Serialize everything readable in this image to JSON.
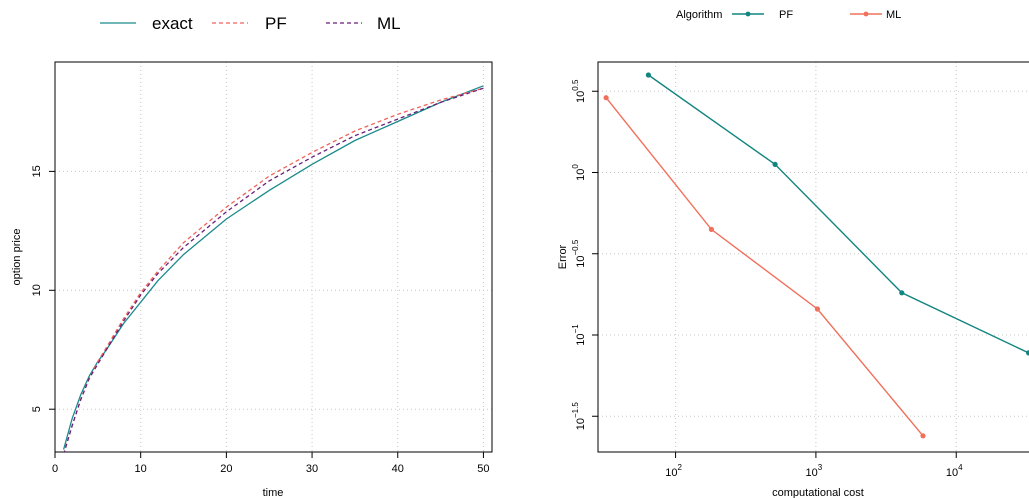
{
  "colors": {
    "exact": "#1b8a8a",
    "pf_left": "#f0625a",
    "ml_left": "#6a1f7a",
    "pf_right": "#11857f",
    "ml_right": "#f0705a"
  },
  "chart_data": [
    {
      "type": "line",
      "title": "",
      "xlabel": "time",
      "ylabel": "option price",
      "xlim": [
        0,
        51
      ],
      "ylim": [
        3.2,
        19.6
      ],
      "xticks": [
        0,
        10,
        20,
        30,
        40,
        50
      ],
      "yticks": [
        5,
        10,
        15
      ],
      "grid": true,
      "legend": "top",
      "series": [
        {
          "name": "exact",
          "style": "solid",
          "x": [
            1,
            2,
            3,
            4,
            5,
            6,
            8,
            10,
            12,
            15,
            18,
            20,
            25,
            30,
            35,
            40,
            45,
            50
          ],
          "y": [
            3.3,
            4.6,
            5.6,
            6.4,
            7.0,
            7.5,
            8.6,
            9.5,
            10.4,
            11.5,
            12.4,
            13.0,
            14.2,
            15.3,
            16.3,
            17.1,
            17.9,
            18.6
          ]
        },
        {
          "name": "PF",
          "style": "dashed",
          "x": [
            1,
            2,
            3,
            4,
            5,
            6,
            8,
            10,
            12,
            15,
            18,
            20,
            25,
            30,
            35,
            40,
            45,
            50
          ],
          "y": [
            3.1,
            4.3,
            5.4,
            6.3,
            7.0,
            7.6,
            8.8,
            9.9,
            10.8,
            12.0,
            12.9,
            13.5,
            14.8,
            15.8,
            16.7,
            17.4,
            18.0,
            18.5
          ]
        },
        {
          "name": "ML",
          "style": "dashed",
          "x": [
            1,
            2,
            3,
            4,
            5,
            6,
            8,
            10,
            12,
            15,
            18,
            20,
            25,
            30,
            35,
            40,
            45,
            50
          ],
          "y": [
            3.1,
            4.3,
            5.4,
            6.3,
            6.9,
            7.5,
            8.7,
            9.8,
            10.7,
            11.8,
            12.7,
            13.3,
            14.6,
            15.6,
            16.5,
            17.2,
            17.9,
            18.5
          ]
        }
      ]
    },
    {
      "type": "line",
      "title": "",
      "xlabel": "computational cost",
      "ylabel": "Error",
      "x_scale": "log10",
      "y_scale": "log10",
      "xlim": [
        28,
        33000
      ],
      "ylim": [
        -1.72,
        0.68
      ],
      "xticks": [
        {
          "value": 100,
          "base": "10",
          "exp": "2"
        },
        {
          "value": 1000,
          "base": "10",
          "exp": "3"
        },
        {
          "value": 10000,
          "base": "10",
          "exp": "4"
        }
      ],
      "yticks": [
        {
          "value": -1.5,
          "base": "10",
          "exp": "−1.5"
        },
        {
          "value": -1,
          "base": "10",
          "exp": "−1"
        },
        {
          "value": -0.5,
          "base": "10",
          "exp": "−0.5"
        },
        {
          "value": 0,
          "base": "10",
          "exp": "0"
        },
        {
          "value": 0.5,
          "base": "10",
          "exp": "0.5"
        }
      ],
      "grid": true,
      "legend": "top",
      "legend_title": "Algorithm",
      "series": [
        {
          "name": "PF",
          "x": [
            64,
            512,
            4096,
            32768
          ],
          "log10_y": [
            0.6,
            0.05,
            -0.74,
            -1.11
          ]
        },
        {
          "name": "ML",
          "x": [
            32,
            180,
            1024,
            5800
          ],
          "log10_y": [
            0.46,
            -0.35,
            -0.84,
            -1.62
          ]
        }
      ]
    }
  ]
}
